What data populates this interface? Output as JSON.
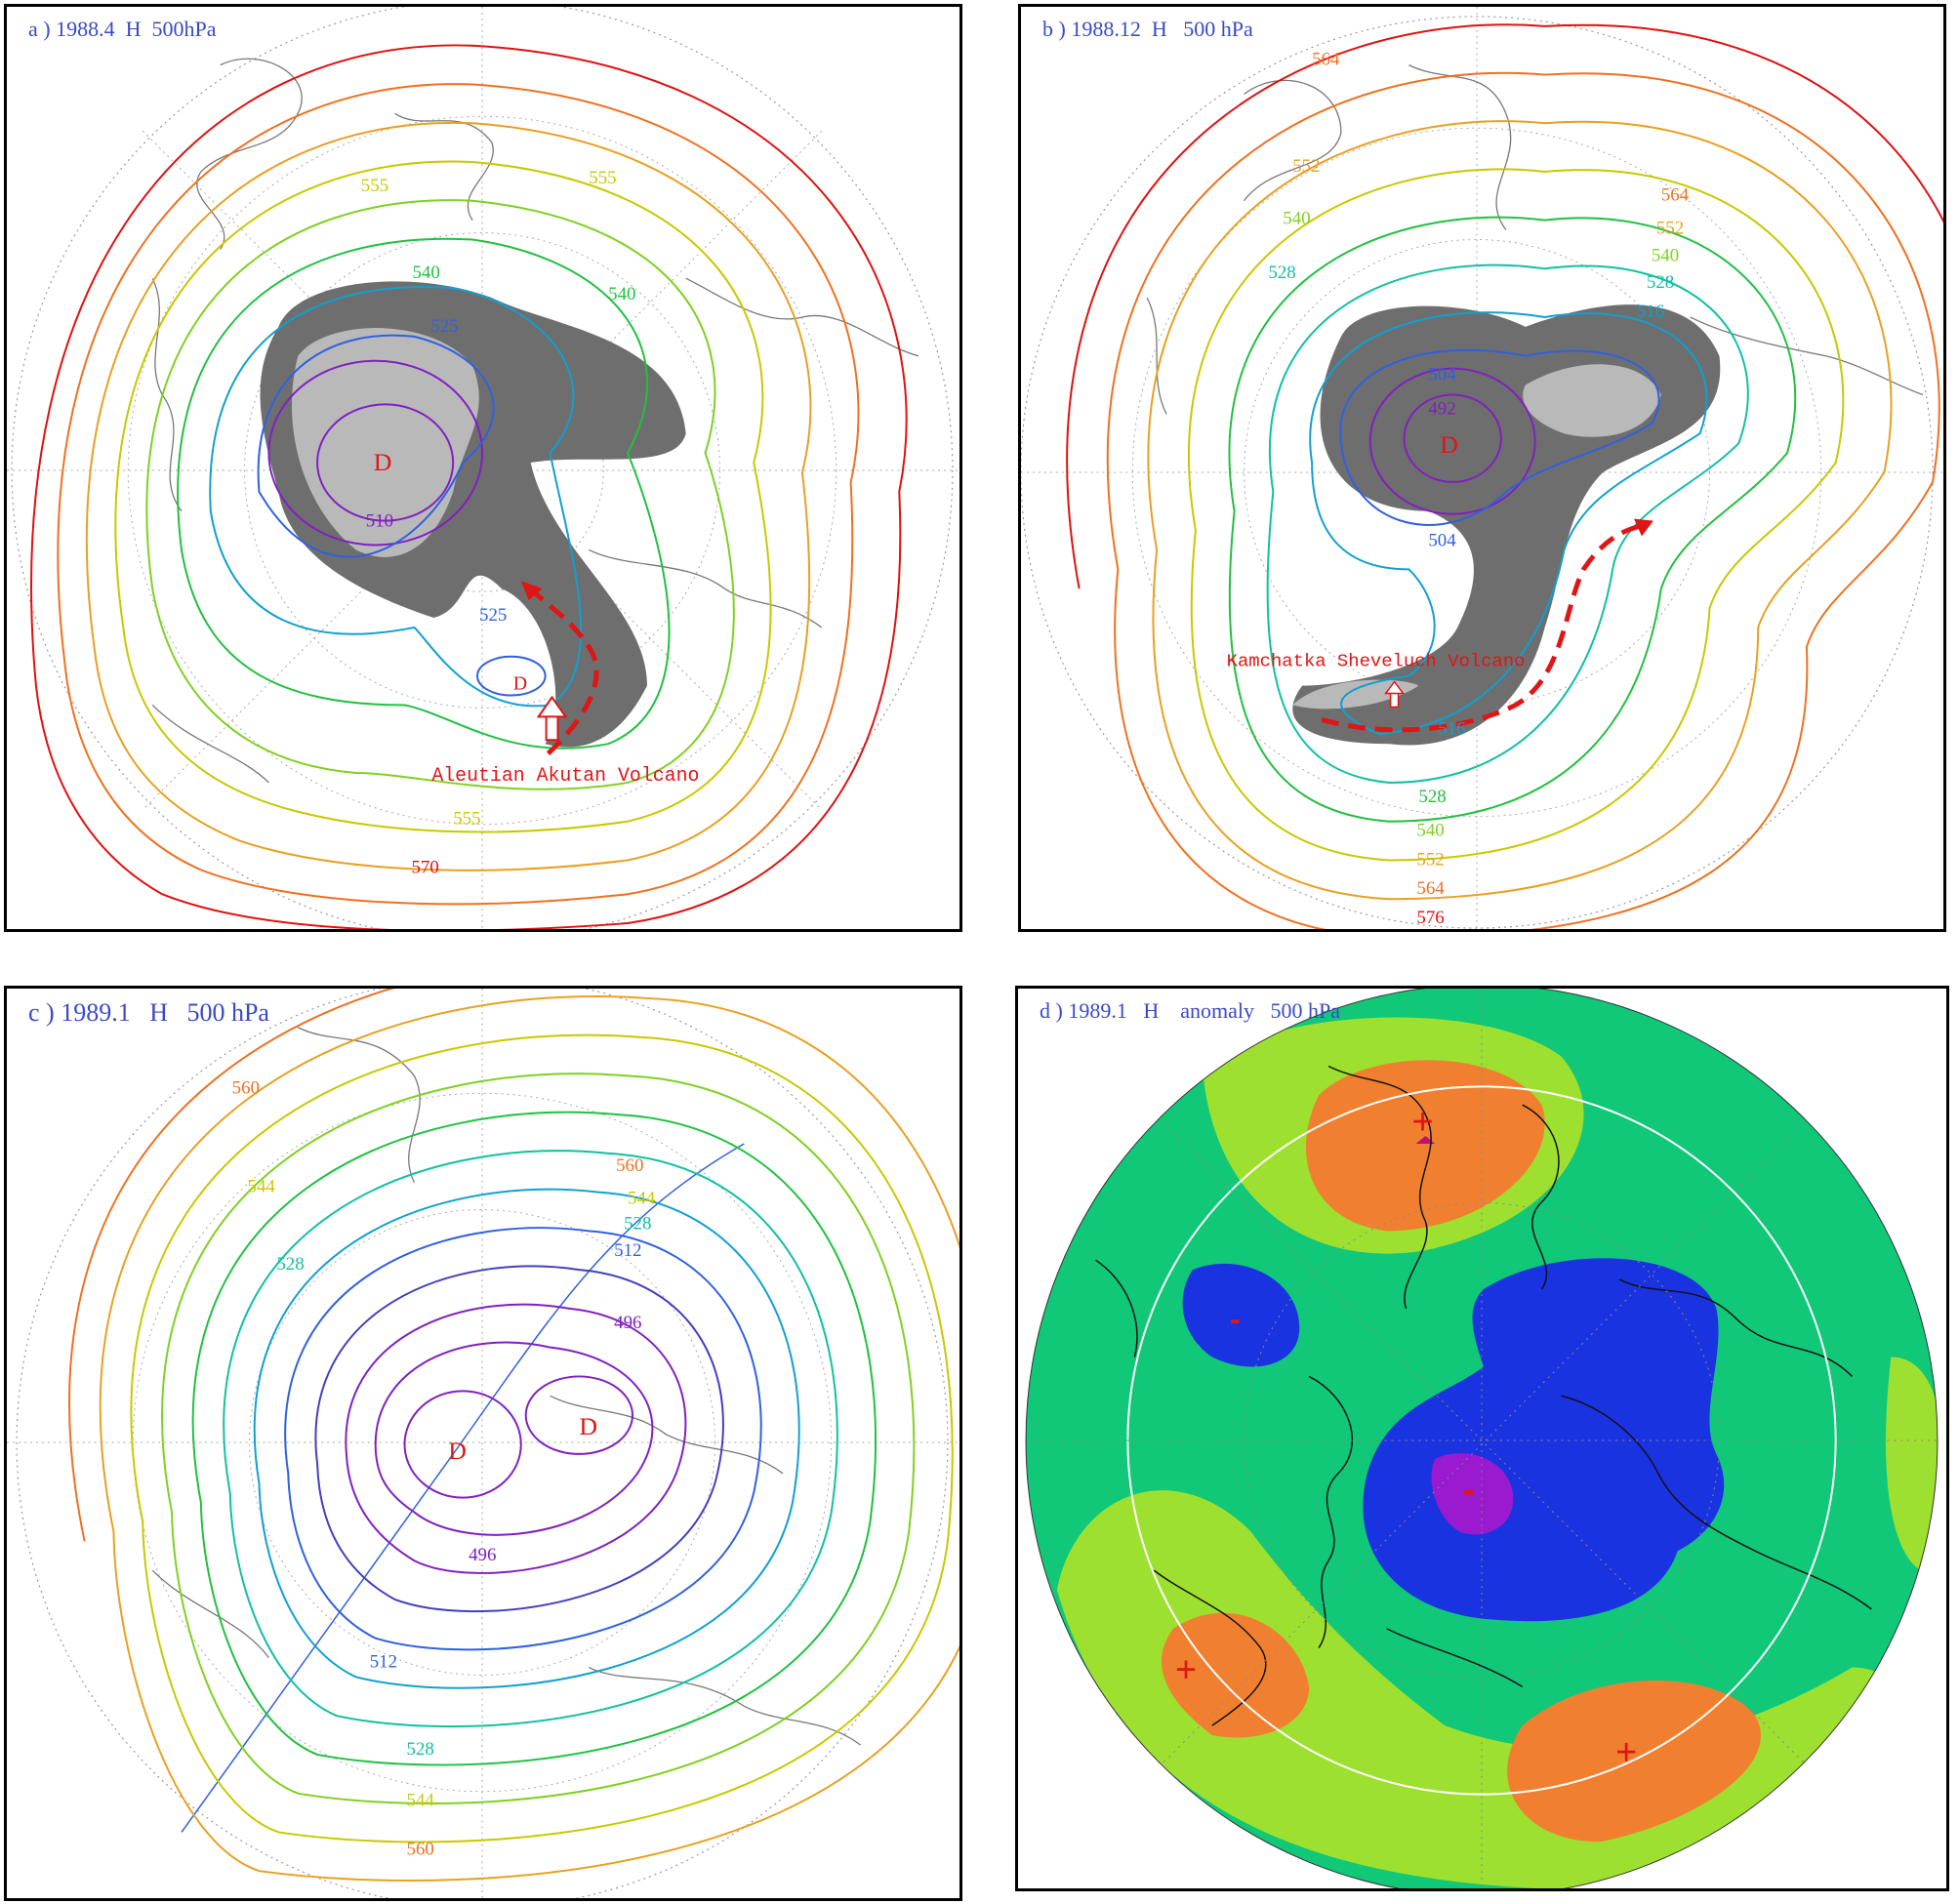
{
  "panels": {
    "a": {
      "label": "a ) 1988.4  H  500hPa",
      "center_marks": [
        "D",
        "D"
      ],
      "contour_labels": [
        "555",
        "555",
        "540",
        "540",
        "525",
        "510",
        "525",
        "555",
        "570"
      ],
      "volcano_label": "Aleutian Akutan Volcano"
    },
    "b": {
      "label": "b ) 1988.12  H   500 hPa",
      "center_marks": [
        "D"
      ],
      "contour_labels": [
        "564",
        "552",
        "540",
        "528",
        "564",
        "552",
        "540",
        "528",
        "516",
        "504",
        "492",
        "504",
        "516",
        "528",
        "540",
        "552",
        "564",
        "576"
      ],
      "volcano_label": "Kamchatka Sheveluch Volcano"
    },
    "c": {
      "label": "c ) 1989.1   H   500 hPa",
      "center_marks": [
        "D",
        "D"
      ],
      "contour_labels": [
        "560",
        "560",
        "544",
        "528",
        "544",
        "528",
        "512",
        "496",
        "496",
        "512",
        "528",
        "544",
        "560"
      ]
    },
    "d": {
      "label": "d ) 1989.1   H    anomaly   500 hPa",
      "anomaly_signs": [
        "+",
        "+",
        "+",
        "-",
        "-"
      ]
    }
  },
  "colors": {
    "contour_palette": [
      "#e01010",
      "#f07020",
      "#e8a020",
      "#c8c800",
      "#80d020",
      "#20c040",
      "#10c0a0",
      "#10a0d0",
      "#3060e0",
      "#4040c0",
      "#8020c0"
    ],
    "shading_dark": "#6e6e6e",
    "shading_light": "#b9b9b9",
    "anomaly_orange": "#f08030",
    "anomaly_lightgreen": "#9ee030",
    "anomaly_green": "#10c878",
    "anomaly_blue": "#1a33e0",
    "anomaly_purple": "#9a1ad0",
    "label_blue": "#3a49c9",
    "volcano_red": "#e01515"
  }
}
